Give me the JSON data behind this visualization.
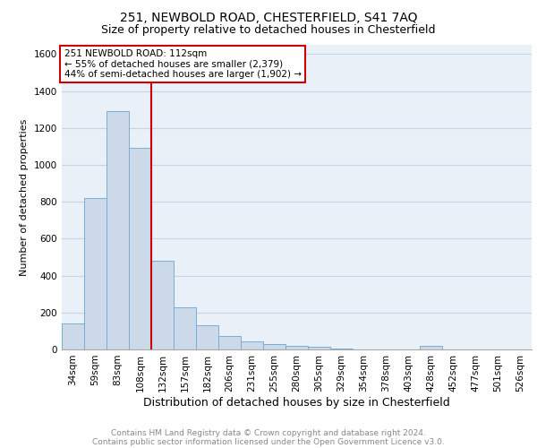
{
  "title_line1": "251, NEWBOLD ROAD, CHESTERFIELD, S41 7AQ",
  "title_line2": "Size of property relative to detached houses in Chesterfield",
  "xlabel": "Distribution of detached houses by size in Chesterfield",
  "ylabel": "Number of detached properties",
  "categories": [
    "34sqm",
    "59sqm",
    "83sqm",
    "108sqm",
    "132sqm",
    "157sqm",
    "182sqm",
    "206sqm",
    "231sqm",
    "255sqm",
    "280sqm",
    "305sqm",
    "329sqm",
    "354sqm",
    "378sqm",
    "403sqm",
    "428sqm",
    "452sqm",
    "477sqm",
    "501sqm",
    "526sqm"
  ],
  "values": [
    140,
    820,
    1290,
    1090,
    480,
    230,
    130,
    75,
    45,
    30,
    20,
    15,
    5,
    0,
    0,
    0,
    20,
    0,
    0,
    0,
    0
  ],
  "bar_color": "#ccd9e8",
  "bar_edge_color": "#7aadd4",
  "vline_x_index": 3,
  "vline_color": "#cc0000",
  "annotation_text": "251 NEWBOLD ROAD: 112sqm\n← 55% of detached houses are smaller (2,379)\n44% of semi-detached houses are larger (1,902) →",
  "annotation_box_color": "#ffffff",
  "annotation_box_edge_color": "#cc0000",
  "ylim": [
    0,
    1650
  ],
  "yticks": [
    0,
    200,
    400,
    600,
    800,
    1000,
    1200,
    1400,
    1600
  ],
  "grid_color": "#c8d4e0",
  "background_color": "#eaf0f7",
  "footnote_line1": "Contains HM Land Registry data © Crown copyright and database right 2024.",
  "footnote_line2": "Contains public sector information licensed under the Open Government Licence v3.0.",
  "title_fontsize": 10,
  "subtitle_fontsize": 9,
  "xlabel_fontsize": 9,
  "ylabel_fontsize": 8,
  "tick_fontsize": 7.5,
  "annotation_fontsize": 7.5,
  "footnote_fontsize": 6.5
}
